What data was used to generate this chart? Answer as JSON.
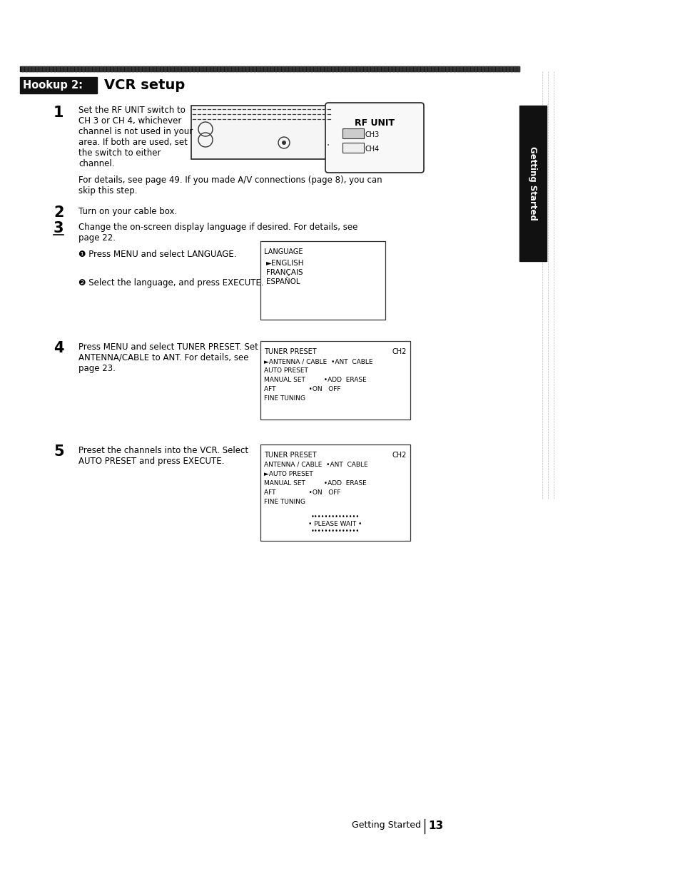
{
  "page_bg": "#ffffff",
  "top_bar_color": "#111111",
  "header_label_bg": "#111111",
  "header_label_text": "Hookup 2:",
  "header_label_color": "#ffffff",
  "header_title": "VCR setup",
  "header_title_color": "#000000",
  "sidebar_bg": "#111111",
  "sidebar_text": "Getting Started",
  "sidebar_text_color": "#ffffff",
  "step1_num": "1",
  "step1_text_lines": [
    "Set the RF UNIT switch to",
    "CH 3 or CH 4, whichever",
    "channel is not used in your",
    "area. If both are used, set",
    "the switch to either",
    "channel."
  ],
  "step1_note_lines": [
    "For details, see page 49. If you made A/V connections (page 8), you can",
    "skip this step."
  ],
  "step2_num": "2",
  "step2_text": "Turn on your cable box.",
  "step3_num": "3",
  "step3_text_lines": [
    "Change the on-screen display language if desired. For details, see",
    "page 22."
  ],
  "step3_sub1": "❶ Press MENU and select LANGUAGE.",
  "step3_sub2": "❷ Select the language, and press EXECUTE.",
  "lang_box_title": "LANGUAGE",
  "lang_box_lines": [
    "►ENGLISH",
    "FRANÇAIS",
    "ESPAÑOL"
  ],
  "step4_num": "4",
  "step4_text_lines": [
    "Press MENU and select TUNER PRESET. Set",
    "ANTENNA/CABLE to ANT. For details, see",
    "page 23."
  ],
  "tuner1_title": "TUNER PRESET",
  "tuner1_ch": "CH2",
  "tuner1_lines": [
    "►ANTENNA / CABLE  •ANT  CABLE",
    "AUTO PRESET",
    "MANUAL SET         •ADD  ERASE",
    "AFT                •ON   OFF",
    "FINE TUNING"
  ],
  "step5_num": "5",
  "step5_text_lines": [
    "Preset the channels into the VCR. Select",
    "AUTO PRESET and press EXECUTE."
  ],
  "tuner2_title": "TUNER PRESET",
  "tuner2_ch": "CH2",
  "tuner2_lines": [
    "ANTENNA / CABLE  •ANT  CABLE",
    "►AUTO PRESET",
    "MANUAL SET         •ADD  ERASE",
    "AFT                •ON   OFF",
    "FINE TUNING"
  ],
  "tuner2_dots": "••••••••••••••",
  "tuner2_wait": "• PLEASE WAIT •",
  "footer_text": "Getting Started",
  "footer_page": "13"
}
